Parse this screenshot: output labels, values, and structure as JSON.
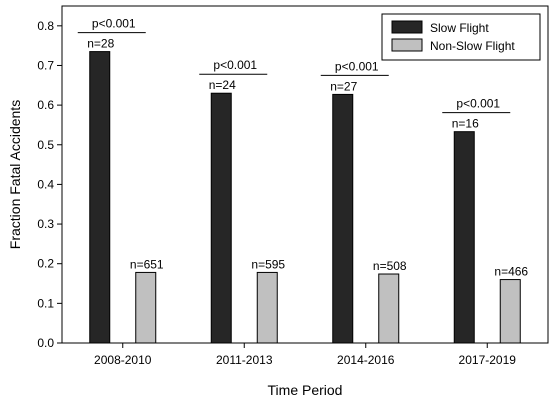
{
  "chart_data": {
    "type": "bar",
    "categories": [
      "2008-2010",
      "2011-2013",
      "2014-2016",
      "2017-2019"
    ],
    "series": [
      {
        "name": "Slow Flight",
        "color": "#262626",
        "values": [
          0.735,
          0.63,
          0.627,
          0.533
        ],
        "labels": [
          "n=28",
          "n=24",
          "n=27",
          "n=16"
        ]
      },
      {
        "name": "Non-Slow Flight",
        "color": "#c0c0c0",
        "values": [
          0.178,
          0.178,
          0.174,
          0.16
        ],
        "labels": [
          "n=651",
          "n=595",
          "n=508",
          "n=466"
        ]
      }
    ],
    "annotations": [
      "p<0.001",
      "p<0.001",
      "p<0.001",
      "p<0.001"
    ],
    "xlabel": "Time Period",
    "ylabel": "Fraction Fatal Accidents",
    "ylim": [
      0,
      0.85
    ],
    "yticks": [
      0.0,
      0.1,
      0.2,
      0.3,
      0.4,
      0.5,
      0.6,
      0.7,
      0.8
    ],
    "legend": "top-right",
    "grid": false
  }
}
